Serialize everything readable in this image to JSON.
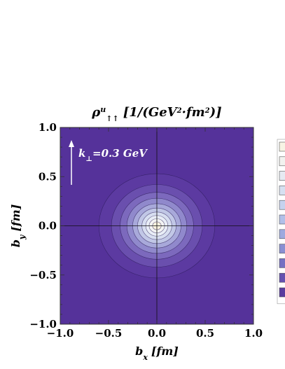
{
  "chart_data": {
    "type": "heatmap",
    "title": "ρ↑↑^u [1/(GeV²·fm²)]",
    "title_parts": {
      "rho": "ρ",
      "sup": "u",
      "sub": "↑↑",
      "unit": "[1/(GeV",
      "unit_sup1": "2",
      "unit_mid": "·fm",
      "unit_sup2": "2",
      "unit_end": ")]"
    },
    "xlabel": "b",
    "xlabel_sub": "x",
    "xlabel_unit": "[fm]",
    "ylabel": "b",
    "ylabel_sub": "y",
    "ylabel_unit": "[fm]",
    "xlim": [
      -1.0,
      1.0
    ],
    "ylim": [
      -1.0,
      1.0
    ],
    "x_ticks": [
      "−1.0",
      "−0.5",
      "0.0",
      "0.5",
      "1.0"
    ],
    "y_ticks": [
      "1.0",
      "0.5",
      "0.0",
      "−0.5",
      "−1.0"
    ],
    "annotation": {
      "prefix": "k",
      "sub": "⊥",
      "suffix": "=0.3 GeV"
    },
    "center": [
      0.0,
      0.0
    ],
    "contour_radii_x": [
      0.6,
      0.47,
      0.38,
      0.31,
      0.25,
      0.2,
      0.155,
      0.115,
      0.08,
      0.045
    ],
    "contour_radii_y": [
      0.53,
      0.42,
      0.34,
      0.28,
      0.225,
      0.18,
      0.14,
      0.105,
      0.072,
      0.04
    ],
    "legend_swatch_colors": [
      "#f7f4e4",
      "#f2f2ef",
      "#e6eaf2",
      "#d6e0f1",
      "#c6d2ee",
      "#b2bfe8",
      "#9ea9de",
      "#8a8fd2",
      "#7670c2",
      "#6651b0",
      "#5a3c9e"
    ],
    "colors": {
      "background": "#55329a",
      "contours": [
        "#5c3aa1",
        "#6a4fae",
        "#7c69bd",
        "#9089cc",
        "#a8a9da",
        "#c1c7e6",
        "#d7def0",
        "#e8edf6",
        "#f3f4f3",
        "#f8f2df"
      ]
    }
  }
}
